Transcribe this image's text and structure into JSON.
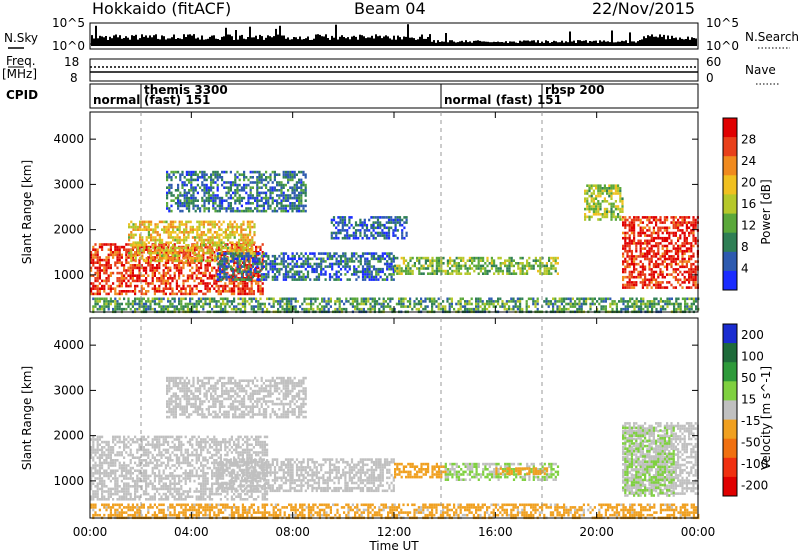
{
  "header": {
    "station": "Hokkaido (fitACF)",
    "beam": "Beam 04",
    "date": "22/Nov/2015"
  },
  "strips": {
    "nsky_label": "N.Sky",
    "nsky_ticks": [
      "10^5",
      "10^0"
    ],
    "nsearch_label": "N.Search",
    "nsearch_ticks": [
      "10^5",
      "10^0"
    ],
    "freq_label": "Freq.",
    "freq_unit": "[MHz]",
    "freq_ticks": [
      "18",
      "8"
    ],
    "nave_label": "Nave",
    "nave_ticks": [
      "60",
      "0"
    ],
    "cpid_label": "CPID",
    "cpid_segments": [
      {
        "line1": "",
        "line2": "normal"
      },
      {
        "line1": "themis 3300",
        "line2": "(fast) 151"
      },
      {
        "line1": "",
        "line2": "normal (fast) 151"
      },
      {
        "line1": "rbsp 200",
        "line2": ""
      }
    ]
  },
  "chart_data": [
    {
      "type": "heatmap",
      "title": "",
      "xlabel": "Time UT",
      "ylabel": "Slant Range [km]",
      "x_ticks": [
        "00:00",
        "04:00",
        "08:00",
        "12:00",
        "16:00",
        "20:00",
        "00:00"
      ],
      "y_ticks": [
        "1000",
        "2000",
        "3000",
        "4000"
      ],
      "xlim_hours": [
        0,
        24
      ],
      "ylim_km": [
        180,
        4600
      ],
      "grid": false,
      "colorbar": {
        "label": "Power [dB]",
        "ticks": [
          "4",
          "8",
          "12",
          "16",
          "20",
          "24",
          "28"
        ],
        "range": [
          0,
          30
        ],
        "colors": [
          "#1a2cff",
          "#2e5bb0",
          "#2f7f55",
          "#5aa83a",
          "#b6c82a",
          "#f0c020",
          "#f08a1e",
          "#e8401a",
          "#e00000"
        ]
      },
      "regions": [
        {
          "t0": 0.0,
          "t1": 6.8,
          "r0": 600,
          "r1": 1700,
          "level": 26
        },
        {
          "t0": 1.5,
          "t1": 6.5,
          "r0": 1300,
          "r1": 2200,
          "level": 18
        },
        {
          "t0": 3.0,
          "t1": 8.5,
          "r0": 2400,
          "r1": 3300,
          "level": 7
        },
        {
          "t0": 5.0,
          "t1": 12.0,
          "r0": 900,
          "r1": 1500,
          "level": 6
        },
        {
          "t0": 9.5,
          "t1": 12.5,
          "r0": 1800,
          "r1": 2300,
          "level": 5
        },
        {
          "t0": 12.0,
          "t1": 18.5,
          "r0": 1050,
          "r1": 1400,
          "level": 13
        },
        {
          "t0": 21.0,
          "t1": 24.0,
          "r0": 700,
          "r1": 2300,
          "level": 27
        },
        {
          "t0": 19.5,
          "t1": 21.0,
          "r0": 2200,
          "r1": 3000,
          "level": 14
        },
        {
          "t0": 0.0,
          "t1": 24.0,
          "r0": 180,
          "r1": 500,
          "level": 10
        }
      ]
    },
    {
      "type": "heatmap",
      "title": "",
      "xlabel": "Time UT",
      "ylabel": "Slant Range [km]",
      "x_ticks": [
        "00:00",
        "04:00",
        "08:00",
        "12:00",
        "16:00",
        "20:00",
        "00:00"
      ],
      "y_ticks": [
        "1000",
        "2000",
        "3000",
        "4000"
      ],
      "xlim_hours": [
        0,
        24
      ],
      "ylim_km": [
        180,
        4600
      ],
      "grid": false,
      "colorbar": {
        "label": "Velocity [m s^-1]",
        "ticks": [
          "200",
          "100",
          "50",
          "15",
          "-15",
          "-50",
          "-100",
          "-200"
        ],
        "range": [
          -250,
          250
        ],
        "colors": [
          "#1a2cd0",
          "#1e6b3a",
          "#2e9a3a",
          "#7fd040",
          "#c0c0c0",
          "#f0a020",
          "#f07010",
          "#f03010",
          "#e00000"
        ]
      },
      "regions": [
        {
          "t0": 0.0,
          "t1": 7.0,
          "r0": 600,
          "r1": 2000,
          "level": 0
        },
        {
          "t0": 3.0,
          "t1": 8.5,
          "r0": 2400,
          "r1": 3300,
          "level": 0
        },
        {
          "t0": 5.0,
          "t1": 12.0,
          "r0": 800,
          "r1": 1500,
          "level": 0
        },
        {
          "t0": 12.0,
          "t1": 14.0,
          "r0": 1100,
          "r1": 1400,
          "level": -60
        },
        {
          "t0": 14.0,
          "t1": 18.5,
          "r0": 1050,
          "r1": 1400,
          "level": 30
        },
        {
          "t0": 16.0,
          "t1": 18.0,
          "r0": 1150,
          "r1": 1300,
          "level": -60
        },
        {
          "t0": 21.0,
          "t1": 24.0,
          "r0": 700,
          "r1": 2300,
          "level": 0
        },
        {
          "t0": 21.0,
          "t1": 23.0,
          "r0": 700,
          "r1": 2200,
          "level": 30
        },
        {
          "t0": 0.0,
          "t1": 24.0,
          "r0": 180,
          "r1": 500,
          "level": -40
        }
      ]
    }
  ]
}
